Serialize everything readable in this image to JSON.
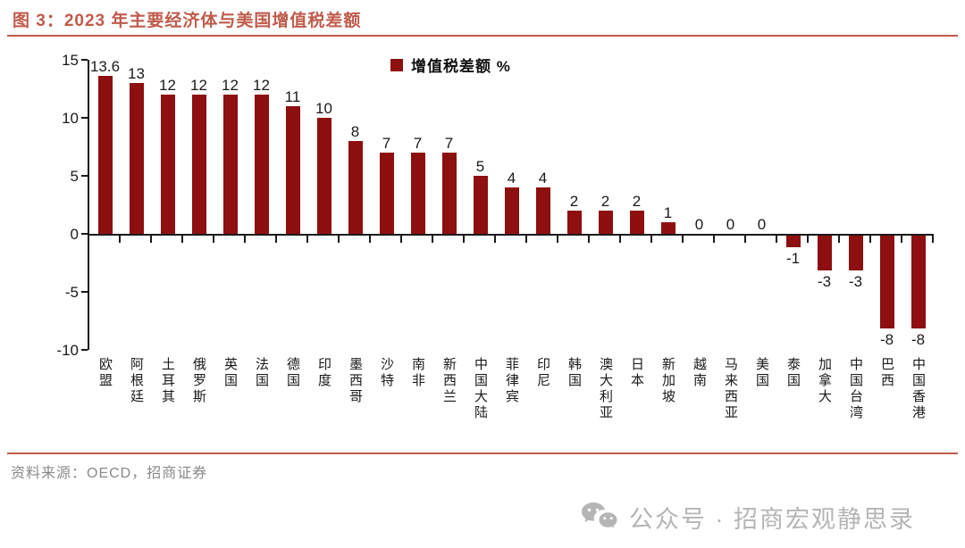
{
  "page": {
    "title": "图 3：2023 年主要经济体与美国增值税差额",
    "source": "资料来源：OECD，招商证券",
    "footer": "公众号 · 招商宏观静思录",
    "accent_color": "#C05B4B",
    "footer_color": "#b5b5b5"
  },
  "chart_data": {
    "type": "bar",
    "title": "2023 年主要经济体与美国增值税差额",
    "legend_label": "增值税差额 %",
    "legend_position": "top-center",
    "xlabel": "",
    "ylabel": "",
    "grid": false,
    "bar_color": "#8E0F0F",
    "ylim": [
      -10,
      15
    ],
    "yticks": [
      15,
      10,
      5,
      0,
      -5,
      -10
    ],
    "categories": [
      "欧盟",
      "阿根廷",
      "土耳其",
      "俄罗斯",
      "英国",
      "法国",
      "德国",
      "印度",
      "墨西哥",
      "沙特",
      "南非",
      "新西兰",
      "中国大陆",
      "菲律宾",
      "印尼",
      "韩国",
      "澳大利亚",
      "日本",
      "新加坡",
      "越南",
      "马来西亚",
      "美国",
      "泰国",
      "加拿大",
      "中国台湾",
      "巴西",
      "中国香港"
    ],
    "values": [
      13.6,
      13,
      12,
      12,
      12,
      12,
      11,
      10,
      8,
      7,
      7,
      7,
      5,
      4,
      4,
      2,
      2,
      2,
      1,
      0,
      0,
      0,
      -1,
      -3,
      -3,
      -8,
      -8
    ]
  }
}
